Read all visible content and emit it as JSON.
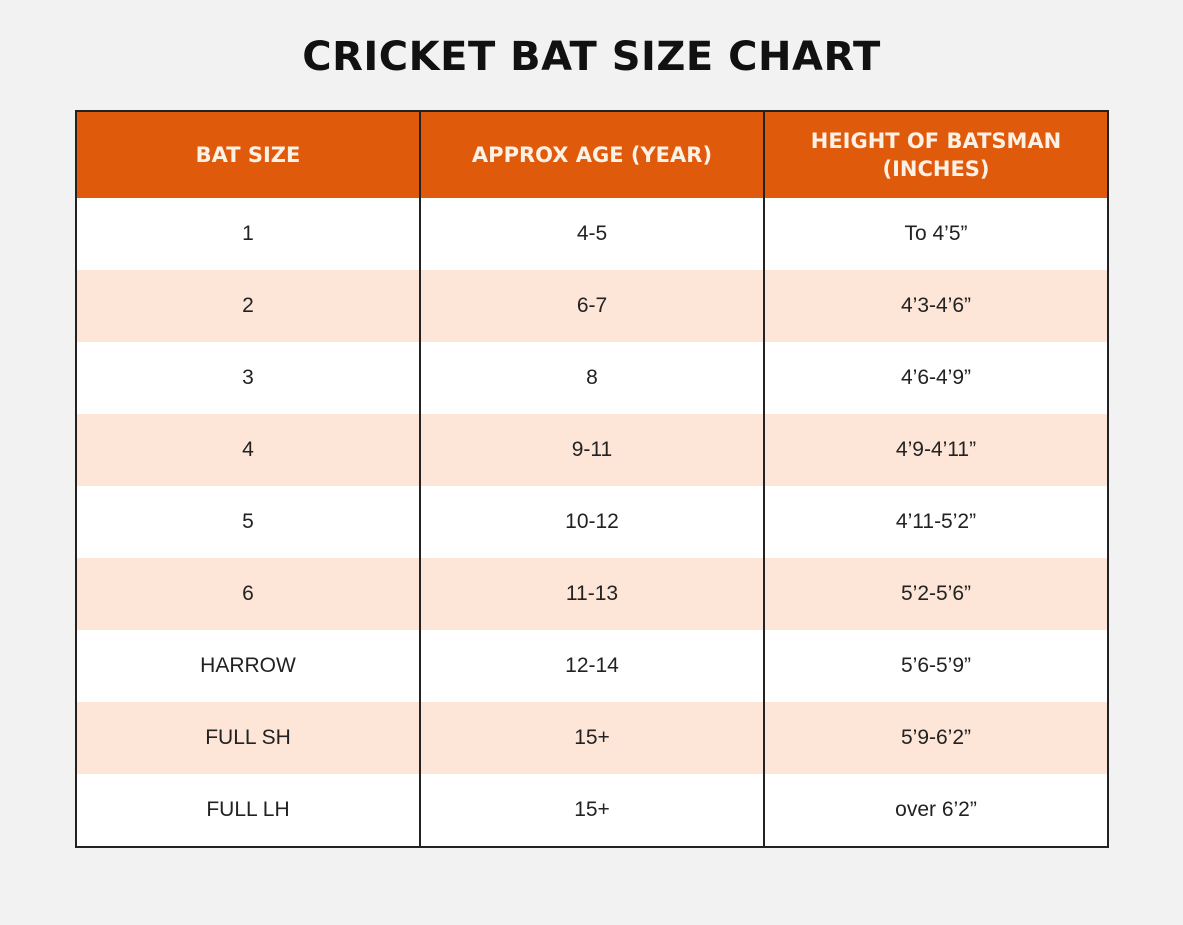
{
  "title": "CRICKET BAT SIZE CHART",
  "colors": {
    "header": "#e05a0c",
    "stripe": "#fde5d8"
  },
  "table": {
    "headers": [
      "BAT SIZE",
      "APPROX AGE (YEAR)",
      "HEIGHT OF BATSMAN (INCHES)"
    ],
    "rows": [
      [
        "1",
        "4-5",
        "To 4’5”"
      ],
      [
        "2",
        "6-7",
        "4’3-4’6”"
      ],
      [
        "3",
        "8",
        "4’6-4’9”"
      ],
      [
        "4",
        "9-11",
        "4’9-4’11”"
      ],
      [
        "5",
        "10-12",
        "4’11-5’2”"
      ],
      [
        "6",
        "11-13",
        "5’2-5’6”"
      ],
      [
        "HARROW",
        "12-14",
        "5’6-5’9”"
      ],
      [
        "FULL SH",
        "15+",
        "5’9-6’2”"
      ],
      [
        "FULL LH",
        "15+",
        "over 6’2”"
      ]
    ]
  }
}
